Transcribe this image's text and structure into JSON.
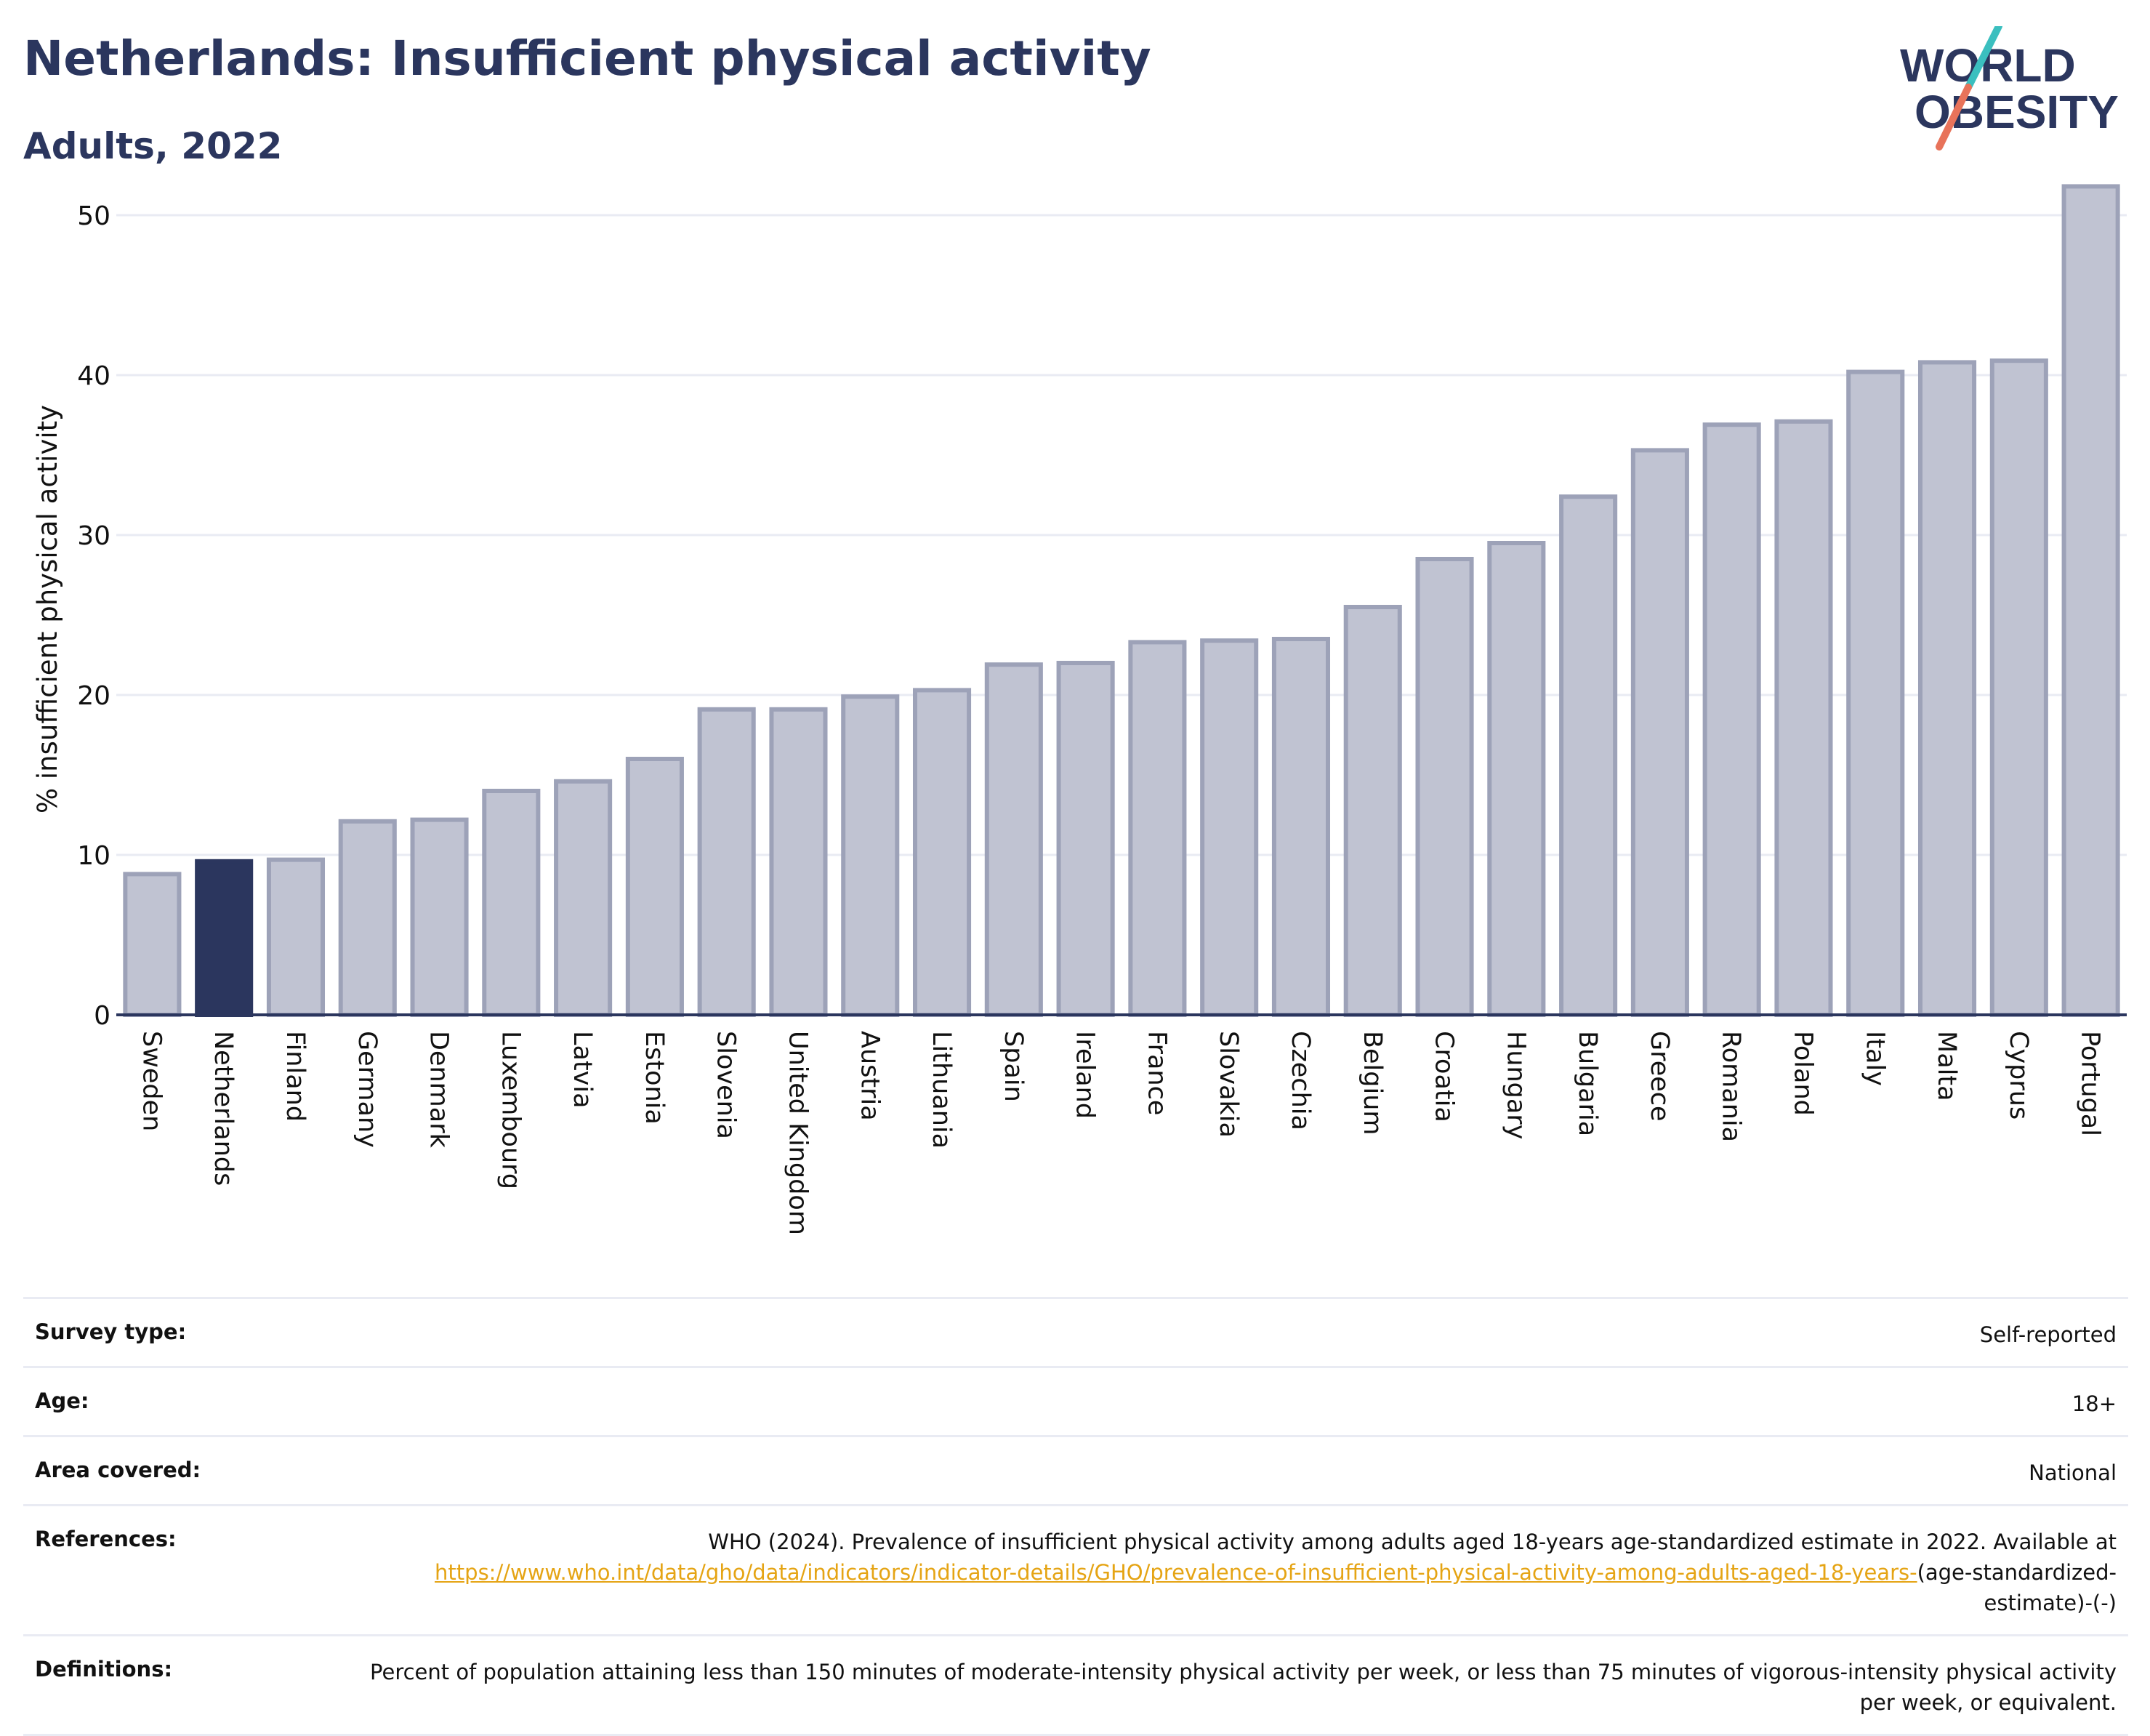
{
  "header": {
    "title": "Netherlands: Insufficient physical activity",
    "subtitle": "Adults, 2022"
  },
  "logo": {
    "line1": "WORLD",
    "line2": "OBESITY",
    "slash_colors": [
      "#3bbfbf",
      "#e8735a"
    ],
    "text_color": "#2b365e"
  },
  "chart_data": {
    "type": "bar",
    "title": "Netherlands: Insufficient physical activity",
    "subtitle": "Adults, 2022",
    "ylabel": "% insufficient physical activity",
    "xlabel": "",
    "ylim": [
      0,
      53
    ],
    "yticks": [
      0,
      10,
      20,
      30,
      40,
      50
    ],
    "grid": true,
    "highlight": "Netherlands",
    "colors": {
      "default": "#c0c3d2",
      "default_border": "#9da2b8",
      "highlight": "#2b365e",
      "axis": "#2b365e",
      "grid": "#e9ebf3"
    },
    "categories": [
      "Sweden",
      "Netherlands",
      "Finland",
      "Germany",
      "Denmark",
      "Luxembourg",
      "Latvia",
      "Estonia",
      "Slovenia",
      "United Kingdom",
      "Austria",
      "Lithuania",
      "Spain",
      "Ireland",
      "France",
      "Slovakia",
      "Czechia",
      "Belgium",
      "Croatia",
      "Hungary",
      "Bulgaria",
      "Greece",
      "Romania",
      "Poland",
      "Italy",
      "Malta",
      "Cyprus",
      "Portugal"
    ],
    "values": [
      8.8,
      9.6,
      9.7,
      12.1,
      12.2,
      14.0,
      14.6,
      16.0,
      19.1,
      19.1,
      19.9,
      20.3,
      21.9,
      22.0,
      23.3,
      23.4,
      23.5,
      25.5,
      28.5,
      29.5,
      32.4,
      35.3,
      36.9,
      37.1,
      40.2,
      40.8,
      40.9,
      51.8
    ]
  },
  "meta": {
    "survey_type": {
      "label": "Survey type:",
      "value": "Self-reported"
    },
    "age": {
      "label": "Age:",
      "value": "18+"
    },
    "area": {
      "label": "Area covered:",
      "value": "National"
    },
    "references": {
      "label": "References:",
      "text": "WHO (2024). Prevalence of insufficient physical activity among adults aged 18-years age-standardized estimate in 2022. Available at ",
      "link": "https://www.who.int/data/gho/data/indicators/indicator-details/GHO/prevalence-of-insufficient-physical-activity-among-adults-aged-18-years-",
      "suffix": "(age-standardized-estimate)-(-)"
    },
    "definitions": {
      "label": "Definitions:",
      "value": "Percent of population attaining less than 150 minutes of moderate-intensity physical activity per week, or less than 75 minutes of vigorous-intensity physical activity per week, or equivalent."
    }
  }
}
